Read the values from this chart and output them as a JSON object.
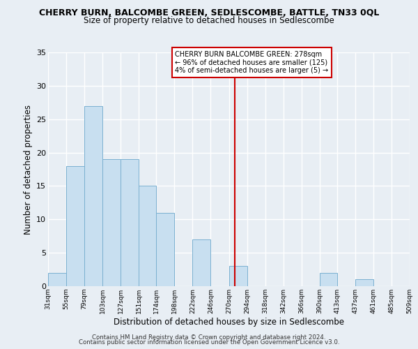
{
  "title": "CHERRY BURN, BALCOMBE GREEN, SEDLESCOMBE, BATTLE, TN33 0QL",
  "subtitle": "Size of property relative to detached houses in Sedlescombe",
  "xlabel": "Distribution of detached houses by size in Sedlescombe",
  "ylabel": "Number of detached properties",
  "footer_line1": "Contains HM Land Registry data © Crown copyright and database right 2024.",
  "footer_line2": "Contains public sector information licensed under the Open Government Licence v3.0.",
  "bar_edges": [
    31,
    55,
    79,
    103,
    127,
    151,
    174,
    198,
    222,
    246,
    270,
    294,
    318,
    342,
    366,
    390,
    413,
    437,
    461,
    485,
    509
  ],
  "bar_heights": [
    2,
    18,
    27,
    19,
    19,
    15,
    11,
    0,
    7,
    0,
    3,
    0,
    0,
    0,
    0,
    2,
    0,
    1,
    0,
    0
  ],
  "bar_color": "#c8dff0",
  "bar_edgecolor": "#7ab0d0",
  "reference_line_x": 278,
  "ylim": [
    0,
    35
  ],
  "annotation_title": "CHERRY BURN BALCOMBE GREEN: 278sqm",
  "annotation_line1": "← 96% of detached houses are smaller (125)",
  "annotation_line2": "4% of semi-detached houses are larger (5) →",
  "annotation_box_facecolor": "#ffffff",
  "annotation_box_edgecolor": "#cc0000",
  "vline_color": "#cc0000",
  "bg_color": "#e8eef4",
  "grid_color": "#ffffff",
  "tick_labels": [
    "31sqm",
    "55sqm",
    "79sqm",
    "103sqm",
    "127sqm",
    "151sqm",
    "174sqm",
    "198sqm",
    "222sqm",
    "246sqm",
    "270sqm",
    "294sqm",
    "318sqm",
    "342sqm",
    "366sqm",
    "390sqm",
    "413sqm",
    "437sqm",
    "461sqm",
    "485sqm",
    "509sqm"
  ],
  "yticks": [
    0,
    5,
    10,
    15,
    20,
    25,
    30,
    35
  ]
}
